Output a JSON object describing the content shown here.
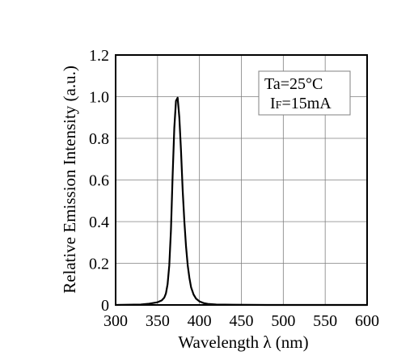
{
  "chart_data": {
    "type": "line",
    "title": "",
    "xlabel": "Wavelength λ (nm)",
    "ylabel": "Relative Emission Intensity (a.u.)",
    "xlim": [
      300,
      600
    ],
    "ylim": [
      0,
      1.2
    ],
    "x_ticks": [
      "300",
      "350",
      "400",
      "450",
      "500",
      "550",
      "600"
    ],
    "y_ticks": [
      "0",
      "0.2",
      "0.4",
      "0.6",
      "0.8",
      "1.0",
      "1.2"
    ],
    "grid": true,
    "annotation": {
      "line1": "Ta=25°C",
      "line2_prefix": "I",
      "line2_sub": "F",
      "line2_suffix": "=15mA"
    },
    "series": [
      {
        "x": [
          300,
          330,
          340,
          350,
          355,
          358,
          360,
          362,
          364,
          366,
          368,
          370,
          372,
          374,
          376,
          378,
          380,
          382,
          384,
          386,
          388,
          390,
          393,
          396,
          400,
          405,
          410,
          420,
          440,
          480,
          520,
          560,
          600
        ],
        "y": [
          0,
          0.002,
          0.006,
          0.013,
          0.022,
          0.035,
          0.055,
          0.1,
          0.19,
          0.36,
          0.62,
          0.85,
          0.98,
          0.995,
          0.9,
          0.74,
          0.55,
          0.4,
          0.28,
          0.19,
          0.13,
          0.085,
          0.05,
          0.03,
          0.017,
          0.009,
          0.005,
          0.002,
          0.001,
          0,
          0,
          0,
          0
        ]
      }
    ]
  },
  "colors": {
    "line": "#000000",
    "grid": "#808080",
    "frame": "#000000"
  }
}
